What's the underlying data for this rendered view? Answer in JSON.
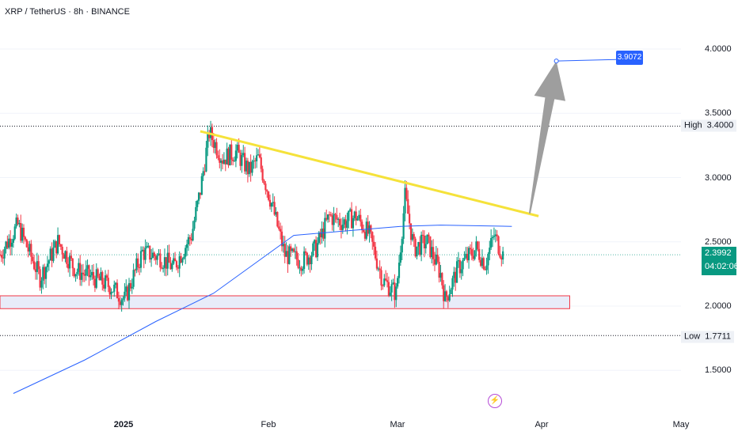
{
  "header": {
    "symbol": "XRP / TetherUS",
    "interval": "8h",
    "exchange": "BINANCE",
    "separator": " · "
  },
  "price_axis": {
    "ticks": [
      "4.0000",
      "3.5000",
      "3.0000",
      "2.5000",
      "2.0000",
      "1.5000"
    ],
    "high_label": "High",
    "high_value": "3.4000",
    "low_label": "Low",
    "low_value": "1.7711",
    "last_price": "2.3992",
    "countdown": "04:02:06",
    "target_label": "3.9072"
  },
  "time_axis": {
    "labels": [
      "2025",
      "Feb",
      "Mar",
      "Apr",
      "May"
    ]
  },
  "colors": {
    "up": "#089981",
    "down": "#f23645",
    "trendline": "#f5e23a",
    "ma": "#2962ff",
    "zone_fill": "#e8ecf9",
    "zone_border": "#f23645",
    "arrow": "#9e9e9e",
    "target": "#2962ff"
  },
  "icons": {
    "event": "lightning-bolt-icon"
  },
  "chart_data": {
    "type": "candlestick",
    "ylim": [
      1.25,
      4.3
    ],
    "x_range": [
      "2024-12-01",
      "2025-05-03"
    ],
    "grid": true,
    "ohlc_close_path": [
      {
        "date": "2024-12-01",
        "close": 2.4
      },
      {
        "date": "2024-12-05",
        "close": 2.63
      },
      {
        "date": "2024-12-10",
        "close": 2.22
      },
      {
        "date": "2024-12-14",
        "close": 2.5
      },
      {
        "date": "2024-12-18",
        "close": 2.28
      },
      {
        "date": "2024-12-22",
        "close": 2.22
      },
      {
        "date": "2024-12-26",
        "close": 2.15
      },
      {
        "date": "2024-12-29",
        "close": 2.05
      },
      {
        "date": "2025-01-02",
        "close": 2.42
      },
      {
        "date": "2025-01-06",
        "close": 2.38
      },
      {
        "date": "2025-01-09",
        "close": 2.3
      },
      {
        "date": "2025-01-13",
        "close": 2.55
      },
      {
        "date": "2025-01-15",
        "close": 2.9
      },
      {
        "date": "2025-01-17",
        "close": 3.35
      },
      {
        "date": "2025-01-20",
        "close": 3.15
      },
      {
        "date": "2025-01-23",
        "close": 3.2
      },
      {
        "date": "2025-01-26",
        "close": 3.05
      },
      {
        "date": "2025-01-28",
        "close": 3.15
      },
      {
        "date": "2025-01-31",
        "close": 2.8
      },
      {
        "date": "2025-02-03",
        "close": 2.4
      },
      {
        "date": "2025-02-07",
        "close": 2.35
      },
      {
        "date": "2025-02-10",
        "close": 2.45
      },
      {
        "date": "2025-02-13",
        "close": 2.7
      },
      {
        "date": "2025-02-16",
        "close": 2.65
      },
      {
        "date": "2025-02-19",
        "close": 2.7
      },
      {
        "date": "2025-02-22",
        "close": 2.55
      },
      {
        "date": "2025-02-25",
        "close": 2.2
      },
      {
        "date": "2025-02-28",
        "close": 2.1
      },
      {
        "date": "2025-03-02",
        "close": 2.85
      },
      {
        "date": "2025-03-04",
        "close": 2.45
      },
      {
        "date": "2025-03-07",
        "close": 2.5
      },
      {
        "date": "2025-03-10",
        "close": 2.25
      },
      {
        "date": "2025-03-11",
        "close": 2.05
      },
      {
        "date": "2025-03-14",
        "close": 2.3
      },
      {
        "date": "2025-03-18",
        "close": 2.45
      },
      {
        "date": "2025-03-20",
        "close": 2.33
      },
      {
        "date": "2025-03-22",
        "close": 2.55
      },
      {
        "date": "2025-03-24",
        "close": 2.4
      }
    ],
    "moving_average": [
      {
        "date": "2024-12-04",
        "value": 1.32
      },
      {
        "date": "2024-12-20",
        "value": 1.58
      },
      {
        "date": "2025-01-05",
        "value": 1.88
      },
      {
        "date": "2025-01-18",
        "value": 2.1
      },
      {
        "date": "2025-01-28",
        "value": 2.35
      },
      {
        "date": "2025-02-05",
        "value": 2.55
      },
      {
        "date": "2025-02-15",
        "value": 2.58
      },
      {
        "date": "2025-03-01",
        "value": 2.62
      },
      {
        "date": "2025-03-10",
        "value": 2.63
      },
      {
        "date": "2025-03-26",
        "value": 2.62
      }
    ],
    "trendline": [
      {
        "date": "2025-01-15",
        "value": 3.36
      },
      {
        "date": "2025-04-01",
        "value": 2.7
      }
    ],
    "support_zone": {
      "from": "2024-12-01",
      "to": "2025-04-08",
      "low": 1.98,
      "high": 2.08
    },
    "high_line": 3.4,
    "low_line": 1.7711,
    "last_price": 2.3992,
    "projection_arrow": {
      "from_date": "2025-03-30",
      "from_value": 2.72,
      "to_date": "2025-04-05",
      "to_value": 3.9072
    },
    "target": {
      "from_date": "2025-04-05",
      "to_date": "2025-04-20",
      "value": 3.9072
    }
  }
}
